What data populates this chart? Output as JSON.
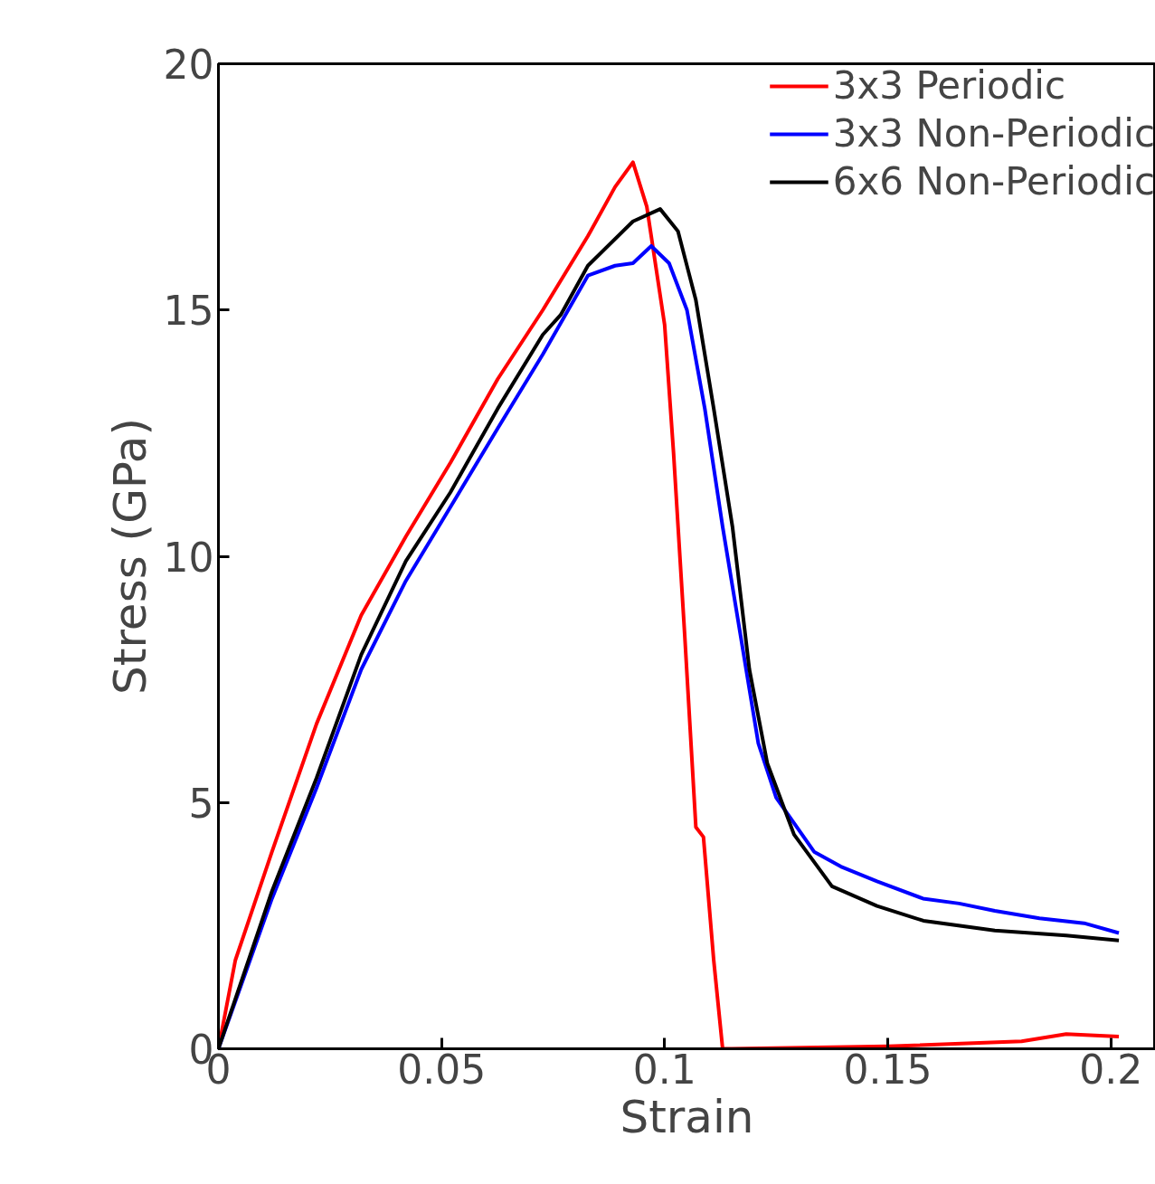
{
  "chart_data": {
    "type": "line",
    "xlabel": "Strain",
    "ylabel": "Stress (GPa)",
    "xlim": [
      0,
      0.21
    ],
    "ylim": [
      0,
      20
    ],
    "xticks": [
      0,
      0.05,
      0.1,
      0.15,
      0.2
    ],
    "yticks": [
      0,
      5,
      10,
      15,
      20
    ],
    "grid": false,
    "legend": "top right",
    "line_style": "solid",
    "marker": "none",
    "series": [
      {
        "name": "3x3 Periodic",
        "color": "#ff0000",
        "x": [
          0,
          0.0038,
          0.012,
          0.022,
          0.032,
          0.042,
          0.052,
          0.0626,
          0.0727,
          0.0828,
          0.0889,
          0.0929,
          0.096,
          0.1,
          0.102,
          0.1045,
          0.107,
          0.1087,
          0.111,
          0.113,
          0.115,
          0.15,
          0.18,
          0.19,
          0.2018
        ],
        "values": [
          0,
          1.8,
          4.0,
          6.6,
          8.8,
          10.4,
          11.9,
          13.6,
          15.0,
          16.5,
          17.5,
          18.0,
          17.1,
          14.7,
          12.1,
          8.4,
          4.5,
          4.3,
          1.8,
          0,
          0,
          0.05,
          0.15,
          0.3,
          0.25
        ]
      },
      {
        "name": "3x3 Non-Periodic",
        "color": "#0000ff",
        "x": [
          0,
          0.012,
          0.022,
          0.032,
          0.042,
          0.052,
          0.0626,
          0.0727,
          0.0828,
          0.0889,
          0.0929,
          0.097,
          0.101,
          0.105,
          0.109,
          0.113,
          0.117,
          0.121,
          0.125,
          0.1335,
          0.1395,
          0.1476,
          0.1579,
          0.166,
          0.174,
          0.184,
          0.194,
          0.2018
        ],
        "values": [
          0,
          3.05,
          5.3,
          7.7,
          9.5,
          11.0,
          12.6,
          14.1,
          15.7,
          15.9,
          15.95,
          16.3,
          15.95,
          15.0,
          13.0,
          10.6,
          8.4,
          6.2,
          5.1,
          4.0,
          3.7,
          3.4,
          3.05,
          2.95,
          2.8,
          2.65,
          2.55,
          2.35
        ]
      },
      {
        "name": "6x6 Non-Periodic",
        "color": "#000000",
        "x": [
          0,
          0.012,
          0.022,
          0.032,
          0.042,
          0.052,
          0.0626,
          0.0727,
          0.0767,
          0.0828,
          0.0929,
          0.099,
          0.103,
          0.107,
          0.111,
          0.1152,
          0.119,
          0.123,
          0.129,
          0.1375,
          0.1476,
          0.158,
          0.174,
          0.19,
          0.2018
        ],
        "values": [
          0,
          3.2,
          5.5,
          8.0,
          9.9,
          11.3,
          13.0,
          14.5,
          14.9,
          15.9,
          16.8,
          17.05,
          16.6,
          15.2,
          13.0,
          10.6,
          7.7,
          5.8,
          4.35,
          3.3,
          2.9,
          2.6,
          2.4,
          2.3,
          2.2
        ]
      }
    ]
  }
}
